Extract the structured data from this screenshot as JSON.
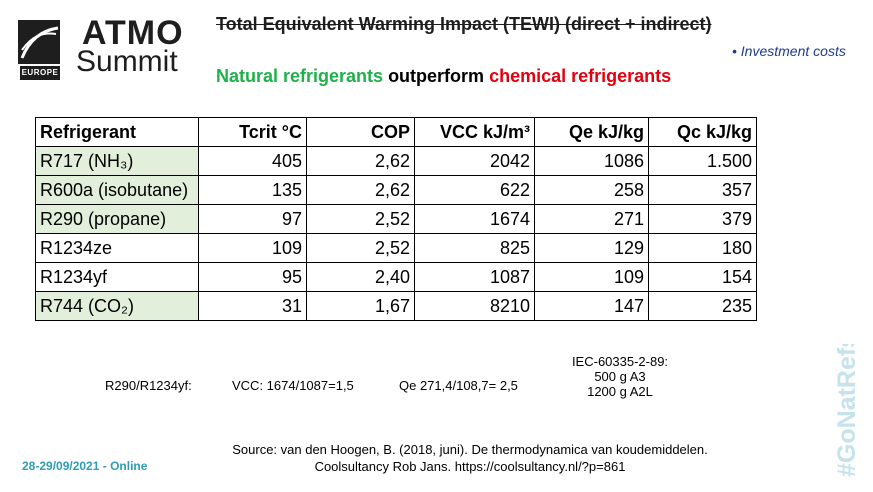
{
  "logo": {
    "brand": "ATMO",
    "sub": "Summit",
    "region": "EUROPE"
  },
  "title": "Total Equivalent Warming Impact (TEWI) (direct + indirect)",
  "bullet": "Investment costs",
  "headline": {
    "part1": "Natural refrigerants",
    "part2": " outperform ",
    "part3": "chemical refrigerants"
  },
  "table": {
    "headers": [
      "Refrigerant",
      "Tcrit °C",
      "COP",
      "VCC kJ/m³",
      "Qe kJ/kg",
      "Qc kJ/kg"
    ],
    "rows": [
      {
        "name": "R717 (NH₃)",
        "natural": true,
        "values": [
          "405",
          "2,62",
          "2042",
          "1086",
          "1.500"
        ]
      },
      {
        "name": "R600a (isobutane)",
        "natural": true,
        "values": [
          "135",
          "2,62",
          "622",
          "258",
          "357"
        ]
      },
      {
        "name": "R290 (propane)",
        "natural": true,
        "values": [
          "97",
          "2,52",
          "1674",
          "271",
          "379"
        ]
      },
      {
        "name": "R1234ze",
        "natural": false,
        "values": [
          "109",
          "2,52",
          "825",
          "129",
          "180"
        ]
      },
      {
        "name": "R1234yf",
        "natural": false,
        "values": [
          "95",
          "2,40",
          "1087",
          "109",
          "154"
        ]
      },
      {
        "name": "R744 (CO₂)",
        "natural": true,
        "values": [
          "31",
          "1,67",
          "8210",
          "147",
          "235"
        ]
      }
    ]
  },
  "notes": {
    "ratio_label": "R290/R1234yf:",
    "vcc": "VCC: 1674/1087=1,5",
    "qe": "Qe 271,4/108,7= 2,5",
    "iec_title": "IEC-60335-2-89:",
    "iec_line1": "500 g A3",
    "iec_line2": "1200 g A2L"
  },
  "source": {
    "line1": "Source: van den Hoogen, B. (2018, juni). De thermodynamica van koudemiddelen.",
    "line2": "Coolsultancy Rob Jans. https://coolsultancy.nl/?p=861"
  },
  "footer": {
    "date": "28-29/09/2021 - Online",
    "hashtag": "#GoNatRefs"
  },
  "colors": {
    "natural_shade": "#e2efda",
    "green": "#1fb14a",
    "red": "#e3000f",
    "teal": "#2f9db5",
    "hashtag": "#c5e3ec"
  }
}
